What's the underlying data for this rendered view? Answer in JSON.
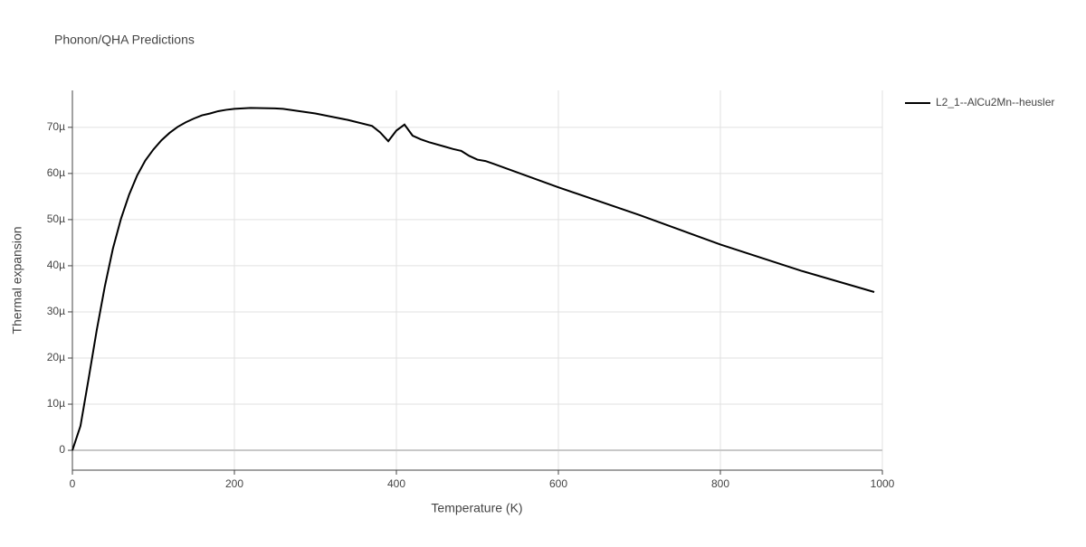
{
  "chart_data": {
    "type": "line",
    "title": "Phonon/QHA Predictions",
    "x_label": "Temperature (K)",
    "y_label": "Thermal expansion",
    "x": [
      0,
      10,
      20,
      30,
      40,
      50,
      60,
      70,
      80,
      90,
      100,
      110,
      120,
      130,
      140,
      150,
      160,
      170,
      180,
      190,
      200,
      220,
      250,
      260,
      300,
      340,
      370,
      380,
      390,
      400,
      410,
      420,
      430,
      440,
      460,
      470,
      480,
      490,
      500,
      510,
      520,
      600,
      700,
      800,
      900,
      990
    ],
    "series": [
      {
        "name": "L2_1--AlCu2Mn--heusler",
        "color": "#000000",
        "values": [
          0,
          5.3e-06,
          1.55e-05,
          2.6e-05,
          3.55e-05,
          4.37e-05,
          5.02e-05,
          5.54e-05,
          5.96e-05,
          6.28e-05,
          6.52e-05,
          6.72e-05,
          6.88e-05,
          7.01e-05,
          7.11e-05,
          7.19e-05,
          7.26e-05,
          7.3e-05,
          7.35e-05,
          7.38e-05,
          7.4e-05,
          7.42e-05,
          7.41e-05,
          7.4e-05,
          7.3e-05,
          7.16e-05,
          7.03e-05,
          6.89e-05,
          6.7e-05,
          6.93e-05,
          7.06e-05,
          6.82e-05,
          6.74e-05,
          6.68e-05,
          6.58e-05,
          6.53e-05,
          6.49e-05,
          6.38e-05,
          6.3e-05,
          6.27e-05,
          6.21e-05,
          5.7e-05,
          5.1e-05,
          4.46e-05,
          3.89e-05,
          3.43e-05
        ]
      }
    ],
    "xlim": [
      0,
      1000
    ],
    "ylim": [
      -4.3e-06,
      7.8e-05
    ],
    "xticks": [
      0,
      200,
      400,
      600,
      800,
      1000
    ],
    "yticks": [
      0,
      {
        "value": 1e-05,
        "label": "10µ"
      },
      {
        "value": 2e-05,
        "label": "20µ"
      },
      {
        "value": 3e-05,
        "label": "30µ"
      },
      {
        "value": 4e-05,
        "label": "40µ"
      },
      {
        "value": 5e-05,
        "label": "50µ"
      },
      {
        "value": 6e-05,
        "label": "60µ"
      },
      {
        "value": 7e-05,
        "label": "70µ"
      }
    ],
    "grid": true
  }
}
